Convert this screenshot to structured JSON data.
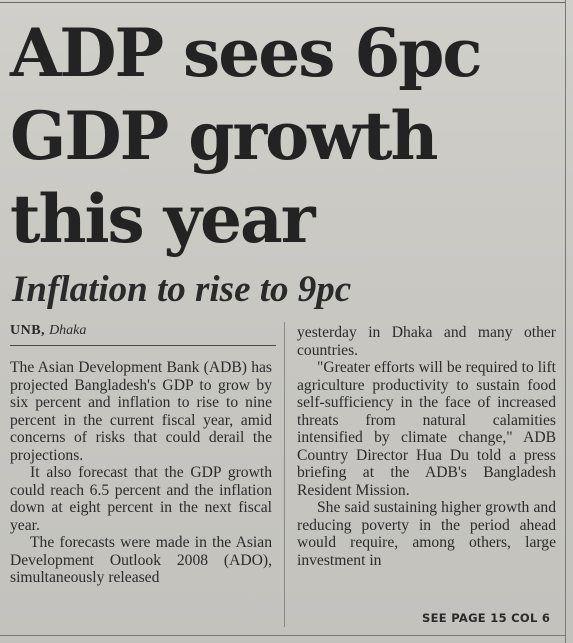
{
  "article": {
    "headline_lines": [
      "ADP sees 6pc",
      "GDP growth",
      "this year"
    ],
    "subheadline": "Inflation to rise to 9pc",
    "byline": {
      "agency": "UNB,",
      "place": "Dhaka"
    },
    "left_column": [
      "The Asian Development Bank (ADB) has projected Bangladesh's GDP to grow by six percent and inflation to rise to nine percent in the current fiscal year, amid concerns of risks that could derail the projections.",
      "It also forecast that the GDP growth could reach 6.5 percent and the inflation down at eight percent in the next fiscal year.",
      "The forecasts were made in the Asian Development Outlook 2008 (ADO), simultaneously released"
    ],
    "right_column": [
      "yesterday in Dhaka and many other countries.",
      "\"Greater efforts will be required to lift agriculture productivity to sustain food self-sufficiency in the face of increased threats from natural calamities intensified by climate change,\" ADB Country Director Hua Du told a press briefing at the ADB's Bangladesh Resident Mission.",
      "She said sustaining higher growth and reducing poverty in the period ahead would require, among others, large investment in"
    ],
    "jump_line": "SEE PAGE 15 COL 6"
  }
}
